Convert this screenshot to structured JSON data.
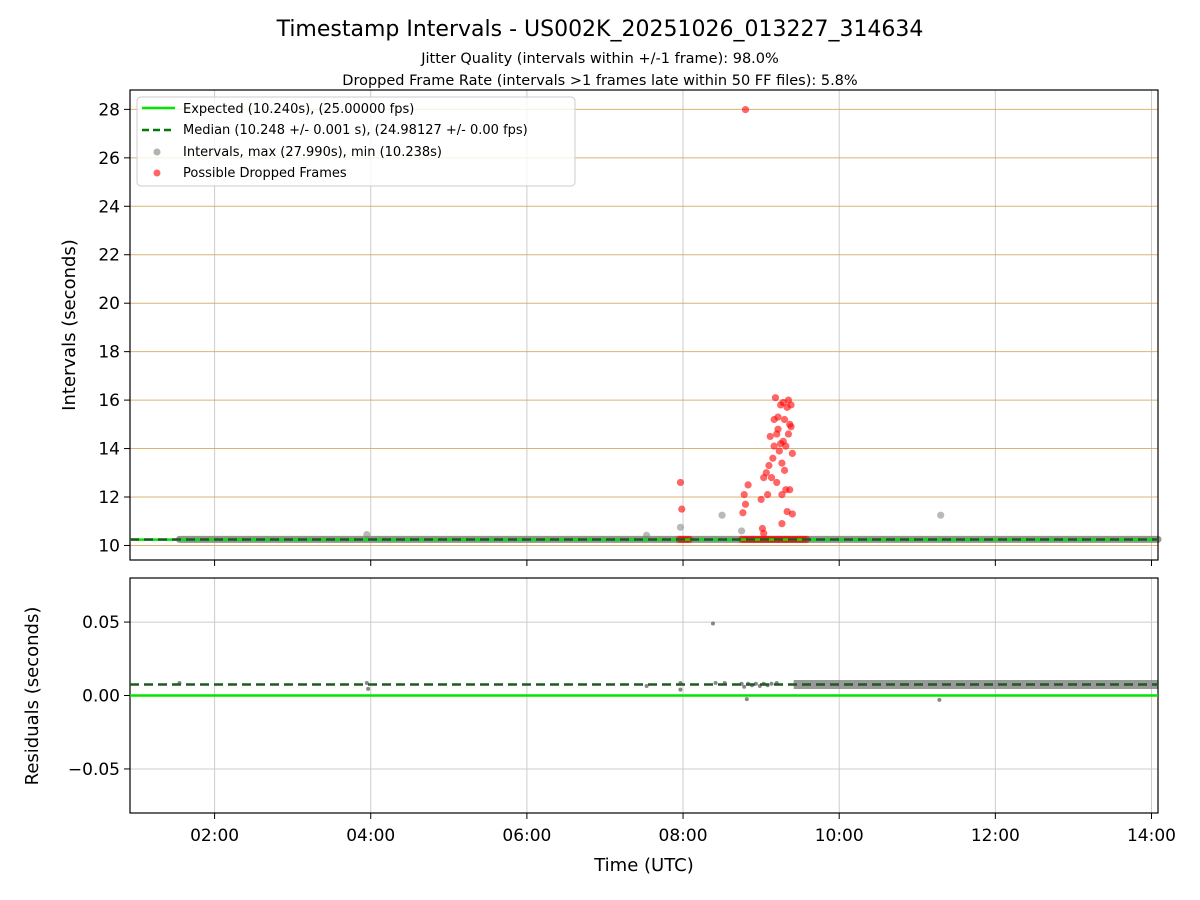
{
  "chart_data": [
    {
      "type": "scatter",
      "title": "Timestamp Intervals - US002K_20251026_013227_314634",
      "subtitle_lines": [
        "Jitter Quality (intervals within +/-1 frame): 98.0%",
        "Dropped Frame Rate (intervals >1 frames late within 50 FF files): 5.8%"
      ],
      "xlabel": "",
      "ylabel": "Intervals (seconds)",
      "x_unit": "hours UTC",
      "xlim": [
        "00:55",
        "14:05"
      ],
      "ylim": [
        9.4,
        28.8
      ],
      "yticks": [
        "10",
        "12",
        "14",
        "16",
        "18",
        "20",
        "22",
        "24",
        "26",
        "28"
      ],
      "grid": true,
      "legend_position": "top-left",
      "legend": [
        "Expected (10.240s), (25.00000 fps)",
        "Median (10.248 +/- 0.001 s), (24.98127 +/- 0.00 fps)",
        "Intervals, max (27.990s), min (10.238s)",
        "Possible Dropped Frames"
      ],
      "expected": 10.24,
      "median": 10.248,
      "colors": {
        "expected": "#00e600",
        "median": "#007a00",
        "intervals": "#808080",
        "dropped": "#ff0000",
        "interval_gridline": "#d2a85a",
        "grid": "#cccccc"
      },
      "series": [
        {
          "name": "Intervals, max (27.990s), min (10.238s)",
          "band": {
            "x_range": [
              "01:33",
              "14:05"
            ],
            "y": 10.25
          },
          "points": [
            {
              "x": "03:57",
              "y": 10.45
            },
            {
              "x": "07:32",
              "y": 10.42
            },
            {
              "x": "07:58",
              "y": 10.75
            },
            {
              "x": "08:30",
              "y": 11.25
            },
            {
              "x": "08:45",
              "y": 10.6
            },
            {
              "x": "11:18",
              "y": 11.25
            }
          ]
        },
        {
          "name": "Possible Dropped Frames",
          "points": [
            {
              "x": "08:48",
              "y": 27.99
            },
            {
              "x": "07:58",
              "y": 12.6
            },
            {
              "x": "07:59",
              "y": 11.5
            },
            {
              "x": "08:46",
              "y": 11.35
            },
            {
              "x": "08:47",
              "y": 12.1
            },
            {
              "x": "08:48",
              "y": 11.7
            },
            {
              "x": "08:50",
              "y": 12.5
            },
            {
              "x": "09:00",
              "y": 11.9
            },
            {
              "x": "09:02",
              "y": 12.8
            },
            {
              "x": "09:04",
              "y": 13.0
            },
            {
              "x": "09:05",
              "y": 12.1
            },
            {
              "x": "09:06",
              "y": 13.3
            },
            {
              "x": "09:07",
              "y": 14.5
            },
            {
              "x": "09:08",
              "y": 12.8
            },
            {
              "x": "09:09",
              "y": 13.6
            },
            {
              "x": "09:10",
              "y": 14.1
            },
            {
              "x": "09:10",
              "y": 15.2
            },
            {
              "x": "09:11",
              "y": 16.1
            },
            {
              "x": "09:12",
              "y": 12.6
            },
            {
              "x": "09:12",
              "y": 14.6
            },
            {
              "x": "09:13",
              "y": 15.3
            },
            {
              "x": "09:13",
              "y": 14.8
            },
            {
              "x": "09:14",
              "y": 13.9
            },
            {
              "x": "09:15",
              "y": 15.8
            },
            {
              "x": "09:15",
              "y": 14.2
            },
            {
              "x": "09:16",
              "y": 12.1
            },
            {
              "x": "09:16",
              "y": 13.4
            },
            {
              "x": "09:17",
              "y": 14.3
            },
            {
              "x": "09:17",
              "y": 15.9
            },
            {
              "x": "09:18",
              "y": 15.2
            },
            {
              "x": "09:18",
              "y": 13.1
            },
            {
              "x": "09:19",
              "y": 14.1
            },
            {
              "x": "09:19",
              "y": 12.3
            },
            {
              "x": "09:20",
              "y": 15.7
            },
            {
              "x": "09:20",
              "y": 11.4
            },
            {
              "x": "09:21",
              "y": 16.0
            },
            {
              "x": "09:21",
              "y": 14.6
            },
            {
              "x": "09:22",
              "y": 15.0
            },
            {
              "x": "09:22",
              "y": 12.3
            },
            {
              "x": "09:23",
              "y": 15.8
            },
            {
              "x": "09:23",
              "y": 14.9
            },
            {
              "x": "09:24",
              "y": 11.3
            },
            {
              "x": "09:24",
              "y": 13.8
            },
            {
              "x": "09:16",
              "y": 10.9
            },
            {
              "x": "09:01",
              "y": 10.7
            },
            {
              "x": "09:02",
              "y": 10.5
            },
            {
              "x": "07:57",
              "y": 10.25
            },
            {
              "x": "07:59",
              "y": 10.25
            },
            {
              "x": "08:01",
              "y": 10.25
            },
            {
              "x": "08:03",
              "y": 10.25
            },
            {
              "x": "08:05",
              "y": 10.25
            },
            {
              "x": "08:45",
              "y": 10.25
            },
            {
              "x": "08:47",
              "y": 10.25
            },
            {
              "x": "08:49",
              "y": 10.25
            },
            {
              "x": "08:51",
              "y": 10.25
            },
            {
              "x": "08:53",
              "y": 10.25
            },
            {
              "x": "08:55",
              "y": 10.25
            },
            {
              "x": "08:57",
              "y": 10.25
            },
            {
              "x": "08:59",
              "y": 10.25
            },
            {
              "x": "09:01",
              "y": 10.25
            },
            {
              "x": "09:03",
              "y": 10.25
            },
            {
              "x": "09:05",
              "y": 10.25
            },
            {
              "x": "09:07",
              "y": 10.25
            },
            {
              "x": "09:09",
              "y": 10.25
            },
            {
              "x": "09:11",
              "y": 10.25
            },
            {
              "x": "09:13",
              "y": 10.25
            },
            {
              "x": "09:15",
              "y": 10.25
            },
            {
              "x": "09:17",
              "y": 10.25
            },
            {
              "x": "09:19",
              "y": 10.25
            },
            {
              "x": "09:21",
              "y": 10.25
            },
            {
              "x": "09:23",
              "y": 10.25
            },
            {
              "x": "09:25",
              "y": 10.25
            },
            {
              "x": "09:27",
              "y": 10.25
            },
            {
              "x": "09:29",
              "y": 10.25
            },
            {
              "x": "09:31",
              "y": 10.25
            },
            {
              "x": "09:33",
              "y": 10.25
            },
            {
              "x": "09:35",
              "y": 10.25
            }
          ]
        }
      ]
    },
    {
      "type": "scatter",
      "title": "",
      "xlabel": "Time (UTC)",
      "ylabel": "Residuals (seconds)",
      "xlim": [
        "00:55",
        "14:05"
      ],
      "ylim": [
        -0.08,
        0.08
      ],
      "yticks": [
        "−0.05",
        "0.00",
        "0.05"
      ],
      "xticks": [
        "02:00",
        "04:00",
        "06:00",
        "08:00",
        "10:00",
        "12:00",
        "14:00"
      ],
      "grid": true,
      "expected": 0.0,
      "median": 0.0075,
      "series": [
        {
          "name": "Residuals",
          "band": {
            "x_range": [
              "09:25",
              "14:05"
            ],
            "y": 0.0075
          },
          "points": [
            {
              "x": "01:33",
              "y": 0.0085
            },
            {
              "x": "03:57",
              "y": 0.0085
            },
            {
              "x": "03:58",
              "y": 0.0045
            },
            {
              "x": "07:32",
              "y": 0.0065
            },
            {
              "x": "07:58",
              "y": 0.0085
            },
            {
              "x": "07:58",
              "y": 0.004
            },
            {
              "x": "08:23",
              "y": 0.049
            },
            {
              "x": "08:25",
              "y": 0.0085
            },
            {
              "x": "08:32",
              "y": 0.0085
            },
            {
              "x": "08:45",
              "y": 0.008
            },
            {
              "x": "08:47",
              "y": 0.006
            },
            {
              "x": "08:49",
              "y": -0.0025
            },
            {
              "x": "08:50",
              "y": 0.008
            },
            {
              "x": "08:53",
              "y": 0.007
            },
            {
              "x": "08:56",
              "y": 0.008
            },
            {
              "x": "08:59",
              "y": 0.0065
            },
            {
              "x": "09:02",
              "y": 0.008
            },
            {
              "x": "09:05",
              "y": 0.007
            },
            {
              "x": "09:08",
              "y": 0.008
            },
            {
              "x": "09:12",
              "y": 0.0085
            },
            {
              "x": "11:17",
              "y": -0.003
            }
          ]
        }
      ]
    }
  ]
}
